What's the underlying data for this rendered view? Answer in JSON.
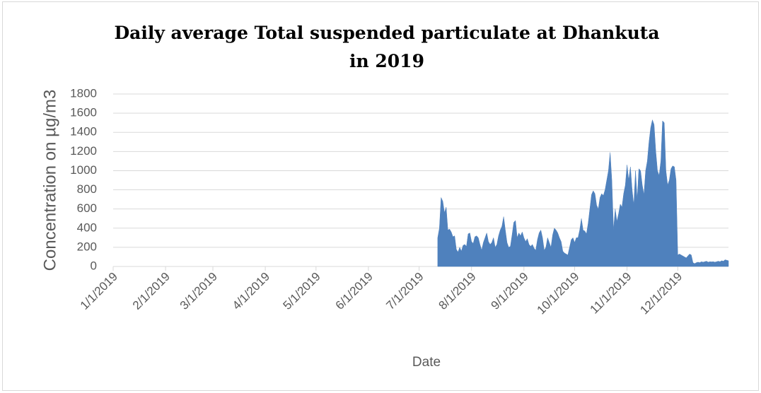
{
  "chart_data": {
    "type": "area",
    "title": "Daily average Total suspended  particulate at Dhankuta in 2019",
    "x_label": "Date",
    "y_label": "Concentration on µg/m3",
    "color": "#4f81bd",
    "grid": true,
    "xlim": [
      "1/1/2019",
      "12/31/2019"
    ],
    "xticks": [
      "1/1/2019",
      "2/1/2019",
      "3/1/2019",
      "4/1/2019",
      "5/1/2019",
      "6/1/2019",
      "7/1/2019",
      "8/1/2019",
      "9/1/2019",
      "10/1/2019",
      "11/1/2019",
      "12/1/2019"
    ],
    "ylim": [
      0,
      1800
    ],
    "yticks": [
      0,
      200,
      400,
      600,
      800,
      1000,
      1200,
      1400,
      1600,
      1800
    ],
    "x": [
      "7/12/2019",
      "7/13/2019",
      "7/14/2019",
      "7/15/2019",
      "7/16/2019",
      "7/17/2019",
      "7/18/2019",
      "7/19/2019",
      "7/20/2019",
      "7/21/2019",
      "7/22/2019",
      "7/23/2019",
      "7/24/2019",
      "7/25/2019",
      "7/26/2019",
      "7/27/2019",
      "7/28/2019",
      "7/29/2019",
      "7/30/2019",
      "7/31/2019",
      "8/1/2019",
      "8/2/2019",
      "8/3/2019",
      "8/4/2019",
      "8/5/2019",
      "8/6/2019",
      "8/7/2019",
      "8/8/2019",
      "8/9/2019",
      "8/10/2019",
      "8/11/2019",
      "8/12/2019",
      "8/13/2019",
      "8/14/2019",
      "8/15/2019",
      "8/16/2019",
      "8/17/2019",
      "8/18/2019",
      "8/19/2019",
      "8/20/2019",
      "8/21/2019",
      "8/22/2019",
      "8/23/2019",
      "8/24/2019",
      "8/25/2019",
      "8/26/2019",
      "8/27/2019",
      "8/28/2019",
      "8/29/2019",
      "8/30/2019",
      "8/31/2019",
      "9/1/2019",
      "9/2/2019",
      "9/3/2019",
      "9/4/2019",
      "9/5/2019",
      "9/6/2019",
      "9/7/2019",
      "9/8/2019",
      "9/9/2019",
      "9/10/2019",
      "9/11/2019",
      "9/12/2019",
      "9/13/2019",
      "9/14/2019",
      "9/15/2019",
      "9/16/2019",
      "9/17/2019",
      "9/18/2019",
      "9/19/2019",
      "9/20/2019",
      "9/21/2019",
      "9/22/2019",
      "9/23/2019",
      "9/24/2019",
      "9/25/2019",
      "9/26/2019",
      "9/27/2019",
      "9/28/2019",
      "9/29/2019",
      "9/30/2019",
      "10/1/2019",
      "10/2/2019",
      "10/3/2019",
      "10/4/2019",
      "10/5/2019",
      "10/6/2019",
      "10/7/2019",
      "10/8/2019",
      "10/9/2019",
      "10/10/2019",
      "10/11/2019",
      "10/12/2019",
      "10/13/2019",
      "10/14/2019",
      "10/15/2019",
      "10/16/2019",
      "10/17/2019",
      "10/18/2019",
      "10/19/2019",
      "10/20/2019",
      "10/21/2019",
      "10/22/2019",
      "10/23/2019",
      "10/24/2019",
      "10/25/2019",
      "10/26/2019",
      "10/27/2019",
      "10/28/2019",
      "10/29/2019",
      "10/30/2019",
      "10/31/2019",
      "11/1/2019",
      "11/2/2019",
      "11/3/2019",
      "11/4/2019",
      "11/5/2019",
      "11/6/2019",
      "11/7/2019",
      "11/8/2019",
      "11/9/2019",
      "11/10/2019",
      "11/11/2019",
      "11/12/2019",
      "11/13/2019",
      "11/14/2019",
      "11/15/2019",
      "11/16/2019",
      "11/17/2019",
      "11/18/2019",
      "11/19/2019",
      "11/20/2019",
      "11/21/2019",
      "11/22/2019",
      "11/23/2019",
      "11/24/2019",
      "11/25/2019",
      "11/26/2019",
      "11/27/2019",
      "11/28/2019",
      "11/29/2019",
      "11/30/2019",
      "12/1/2019",
      "12/2/2019",
      "12/3/2019",
      "12/4/2019",
      "12/5/2019",
      "12/6/2019",
      "12/7/2019",
      "12/8/2019",
      "12/9/2019",
      "12/10/2019",
      "12/11/2019",
      "12/12/2019",
      "12/13/2019",
      "12/14/2019",
      "12/15/2019",
      "12/16/2019",
      "12/17/2019",
      "12/18/2019",
      "12/19/2019",
      "12/20/2019",
      "12/21/2019",
      "12/22/2019",
      "12/23/2019",
      "12/24/2019",
      "12/25/2019",
      "12/26/2019",
      "12/27/2019",
      "12/28/2019",
      "12/29/2019",
      "12/30/2019",
      "12/31/2019"
    ],
    "values": [
      300,
      400,
      720,
      680,
      560,
      620,
      380,
      390,
      360,
      310,
      320,
      180,
      150,
      200,
      160,
      220,
      230,
      210,
      340,
      350,
      260,
      240,
      310,
      320,
      300,
      230,
      170,
      250,
      300,
      350,
      260,
      230,
      250,
      300,
      200,
      230,
      320,
      380,
      420,
      520,
      380,
      250,
      200,
      210,
      330,
      460,
      480,
      300,
      350,
      320,
      360,
      300,
      260,
      290,
      230,
      210,
      230,
      190,
      170,
      280,
      350,
      380,
      300,
      170,
      200,
      300,
      250,
      200,
      330,
      400,
      380,
      350,
      300,
      260,
      160,
      140,
      130,
      120,
      200,
      280,
      300,
      250,
      300,
      300,
      380,
      500,
      380,
      370,
      340,
      450,
      600,
      750,
      790,
      760,
      640,
      600,
      720,
      760,
      740,
      800,
      900,
      1000,
      1190,
      900,
      380,
      600,
      470,
      550,
      650,
      620,
      760,
      850,
      1060,
      900,
      1040,
      800,
      640,
      1000,
      700,
      1020,
      1000,
      850,
      750,
      1000,
      1100,
      1300,
      1450,
      1530,
      1480,
      1200,
      1000,
      950,
      1100,
      1520,
      1500,
      1000,
      850,
      900,
      1020,
      1050,
      1040,
      900,
      120,
      130,
      120,
      110,
      100,
      90,
      110,
      130,
      120,
      40,
      30,
      40,
      45,
      40,
      50,
      45,
      50,
      55,
      45,
      50,
      48,
      50,
      45,
      50,
      55,
      50,
      60,
      55,
      70,
      65,
      60
    ]
  }
}
